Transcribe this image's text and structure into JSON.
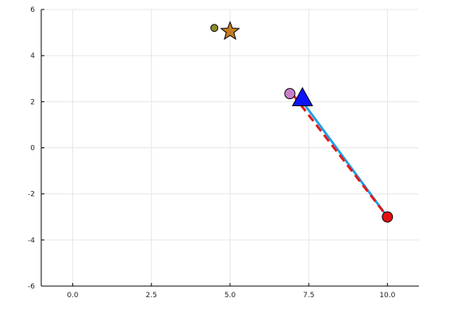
{
  "chart_data": {
    "type": "scatter",
    "title": "",
    "xlabel": "",
    "ylabel": "",
    "xlim": [
      -1.0,
      11.0
    ],
    "ylim": [
      -6,
      6
    ],
    "grid": true,
    "legend": "none",
    "x_ticks": [
      {
        "value": 0.0,
        "label": "0.0"
      },
      {
        "value": 2.5,
        "label": "2.5"
      },
      {
        "value": 5.0,
        "label": "5.0"
      },
      {
        "value": 7.5,
        "label": "7.5"
      },
      {
        "value": 10.0,
        "label": "10.0"
      }
    ],
    "y_ticks": [
      {
        "value": -6,
        "label": "-6"
      },
      {
        "value": -4,
        "label": "-4"
      },
      {
        "value": -2,
        "label": "-2"
      },
      {
        "value": 0,
        "label": "0"
      },
      {
        "value": 2,
        "label": "2"
      },
      {
        "value": 4,
        "label": "4"
      },
      {
        "value": 6,
        "label": "6"
      }
    ],
    "lines": [
      {
        "style": "solid",
        "color": "#1f9fe6",
        "points": [
          [
            7.3,
            2.0
          ],
          [
            10.0,
            -3.0
          ]
        ]
      },
      {
        "style": "dashed",
        "color": "#e21818",
        "points": [
          [
            7.0,
            2.3
          ],
          [
            10.0,
            -3.0
          ]
        ]
      }
    ],
    "markers": [
      {
        "shape": "circle",
        "size": "small",
        "color": "#8a8a2a",
        "x": 4.5,
        "y": 5.2
      },
      {
        "shape": "star",
        "size": "large",
        "color": "#c57a22",
        "x": 5.0,
        "y": 5.05
      },
      {
        "shape": "circle",
        "size": "medium",
        "color": "#c77fc9",
        "x": 6.9,
        "y": 2.35
      },
      {
        "shape": "triangle",
        "size": "large",
        "color": "#0a14ff",
        "x": 7.3,
        "y": 2.15
      },
      {
        "shape": "circle",
        "size": "medium",
        "color": "#e50f0f",
        "x": 10.0,
        "y": -3.0
      }
    ]
  }
}
